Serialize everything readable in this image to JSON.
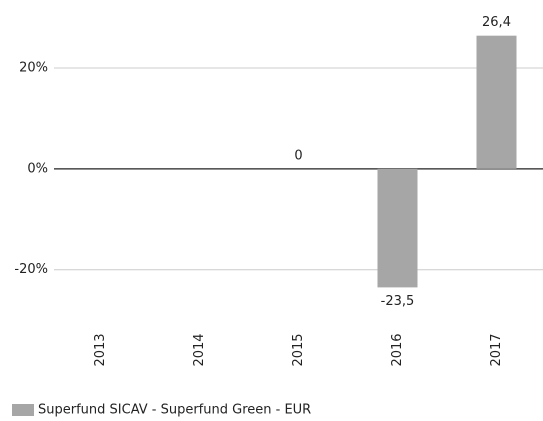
{
  "chart_data": {
    "type": "bar",
    "categories": [
      "2013",
      "2014",
      "2015",
      "2016",
      "2017"
    ],
    "series": [
      {
        "name": "Superfund SICAV - Superfund Green - EUR",
        "color": "#a6a6a6",
        "values": [
          null,
          null,
          0,
          -23.5,
          26.4
        ],
        "value_labels": [
          null,
          null,
          "0",
          "-23,5",
          "26,4"
        ]
      }
    ],
    "ylim": [
      -26,
      28
    ],
    "yticks": [
      {
        "value": -20,
        "label": "-20%"
      },
      {
        "value": 0,
        "label": "0%"
      },
      {
        "value": 20,
        "label": "20%"
      }
    ],
    "grid": true,
    "legend": "bottom-left"
  }
}
